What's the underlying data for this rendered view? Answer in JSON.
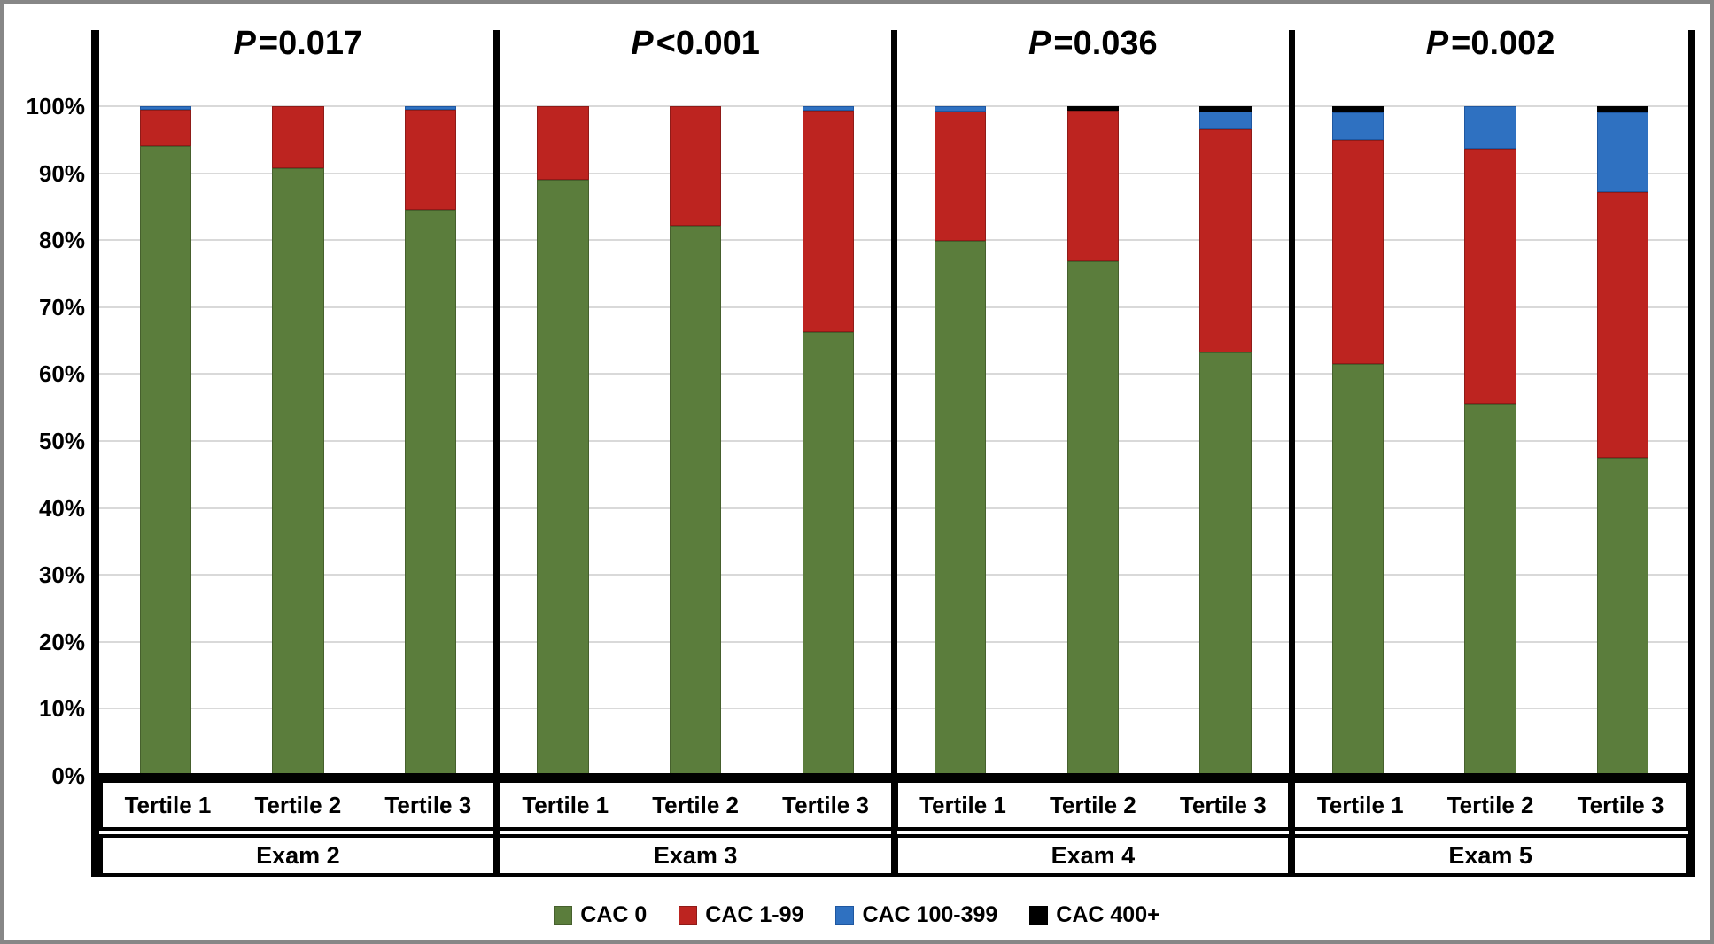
{
  "figure": {
    "background": "#ffffff",
    "frame_border_color": "#878787"
  },
  "chart_data": {
    "type": "bar",
    "stacked": true,
    "percent_scale": true,
    "title": "",
    "xlabel": "",
    "ylabel": "",
    "ylim": [
      0,
      100
    ],
    "yticks": [
      "0%",
      "10%",
      "20%",
      "30%",
      "40%",
      "50%",
      "60%",
      "70%",
      "80%",
      "90%",
      "100%"
    ],
    "grid": true,
    "gridline_color": "#d9d9d9",
    "legend_position": "bottom",
    "series_names": [
      "CAC 0",
      "CAC 1-99",
      "CAC 100-399",
      "CAC 400+"
    ],
    "series_colors": [
      "#5b7d3c",
      "#bd2420",
      "#2f71c1",
      "#000000"
    ],
    "series_border_colors": [
      "#46602d",
      "#8f1b18",
      "#1f57a0",
      "#000000"
    ],
    "panels": [
      {
        "exam": "Exam 2",
        "p_italic": "P",
        "p_rest": "=0.017",
        "tertiles": [
          "Tertile 1",
          "Tertile 2",
          "Tertile 3"
        ],
        "values": [
          [
            94.0,
            5.5,
            0.5,
            0.0
          ],
          [
            90.7,
            9.3,
            0.0,
            0.0
          ],
          [
            84.5,
            15.0,
            0.5,
            0.0
          ]
        ]
      },
      {
        "exam": "Exam 3",
        "p_italic": "P",
        "p_rest": "<0.001",
        "tertiles": [
          "Tertile 1",
          "Tertile 2",
          "Tertile 3"
        ],
        "values": [
          [
            89.0,
            11.0,
            0.0,
            0.0
          ],
          [
            82.2,
            17.8,
            0.0,
            0.0
          ],
          [
            66.3,
            33.0,
            0.7,
            0.0
          ]
        ]
      },
      {
        "exam": "Exam 4",
        "p_italic": "P",
        "p_rest": "=0.036",
        "tertiles": [
          "Tertile 1",
          "Tertile 2",
          "Tertile 3"
        ],
        "values": [
          [
            79.9,
            19.3,
            0.8,
            0.0
          ],
          [
            76.8,
            22.6,
            0.0,
            0.6
          ],
          [
            63.2,
            33.4,
            2.6,
            0.8
          ]
        ]
      },
      {
        "exam": "Exam 5",
        "p_italic": "P",
        "p_rest": "=0.002",
        "tertiles": [
          "Tertile 1",
          "Tertile 2",
          "Tertile 3"
        ],
        "values": [
          [
            61.5,
            33.5,
            4.1,
            0.9
          ],
          [
            55.5,
            38.2,
            6.3,
            0.0
          ],
          [
            47.5,
            39.7,
            11.9,
            0.9
          ]
        ]
      }
    ]
  }
}
